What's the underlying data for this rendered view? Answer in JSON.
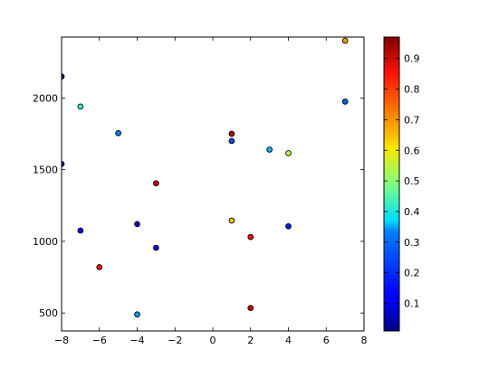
{
  "chart_data": {
    "type": "scatter",
    "title": "",
    "xlabel": "",
    "ylabel": "",
    "xlim": [
      -8,
      8
    ],
    "ylim": [
      375,
      2425
    ],
    "grid": false,
    "x_ticks": [
      -8,
      -6,
      -4,
      -2,
      0,
      2,
      4,
      6,
      8
    ],
    "x_tick_labels": [
      "−8",
      "−6",
      "−4",
      "−2",
      "0",
      "2",
      "4",
      "6",
      "8"
    ],
    "y_ticks": [
      500,
      1000,
      1500,
      2000
    ],
    "y_tick_labels": [
      "500",
      "1000",
      "1500",
      "2000"
    ],
    "colormap": "jet",
    "colorbar": {
      "range": [
        0.01,
        0.97
      ],
      "ticks": [
        0.1,
        0.2,
        0.3,
        0.4,
        0.5,
        0.6,
        0.7,
        0.8,
        0.9
      ],
      "tick_labels": [
        "0.1",
        "0.2",
        "0.3",
        "0.4",
        "0.5",
        "0.6",
        "0.7",
        "0.8",
        "0.9"
      ],
      "placement": "right"
    },
    "points": [
      {
        "x": -8,
        "y": 2150,
        "c": 0.03
      },
      {
        "x": -8,
        "y": 1540,
        "c": 0.05
      },
      {
        "x": -7,
        "y": 1940,
        "c": 0.42
      },
      {
        "x": -7,
        "y": 1075,
        "c": 0.12
      },
      {
        "x": -6,
        "y": 820,
        "c": 0.86
      },
      {
        "x": -5,
        "y": 1755,
        "c": 0.25
      },
      {
        "x": -4,
        "y": 1120,
        "c": 0.05
      },
      {
        "x": -4,
        "y": 490,
        "c": 0.28
      },
      {
        "x": -3,
        "y": 1405,
        "c": 0.93
      },
      {
        "x": -3,
        "y": 955,
        "c": 0.1
      },
      {
        "x": 1,
        "y": 1750,
        "c": 0.95
      },
      {
        "x": 1,
        "y": 1700,
        "c": 0.2
      },
      {
        "x": 1,
        "y": 1145,
        "c": 0.68
      },
      {
        "x": 2,
        "y": 1030,
        "c": 0.86
      },
      {
        "x": 2,
        "y": 535,
        "c": 0.92
      },
      {
        "x": 3,
        "y": 1640,
        "c": 0.3
      },
      {
        "x": 4,
        "y": 1615,
        "c": 0.55
      },
      {
        "x": 4,
        "y": 1105,
        "c": 0.15
      },
      {
        "x": 7,
        "y": 2400,
        "c": 0.72
      },
      {
        "x": 7,
        "y": 1975,
        "c": 0.22
      }
    ]
  }
}
